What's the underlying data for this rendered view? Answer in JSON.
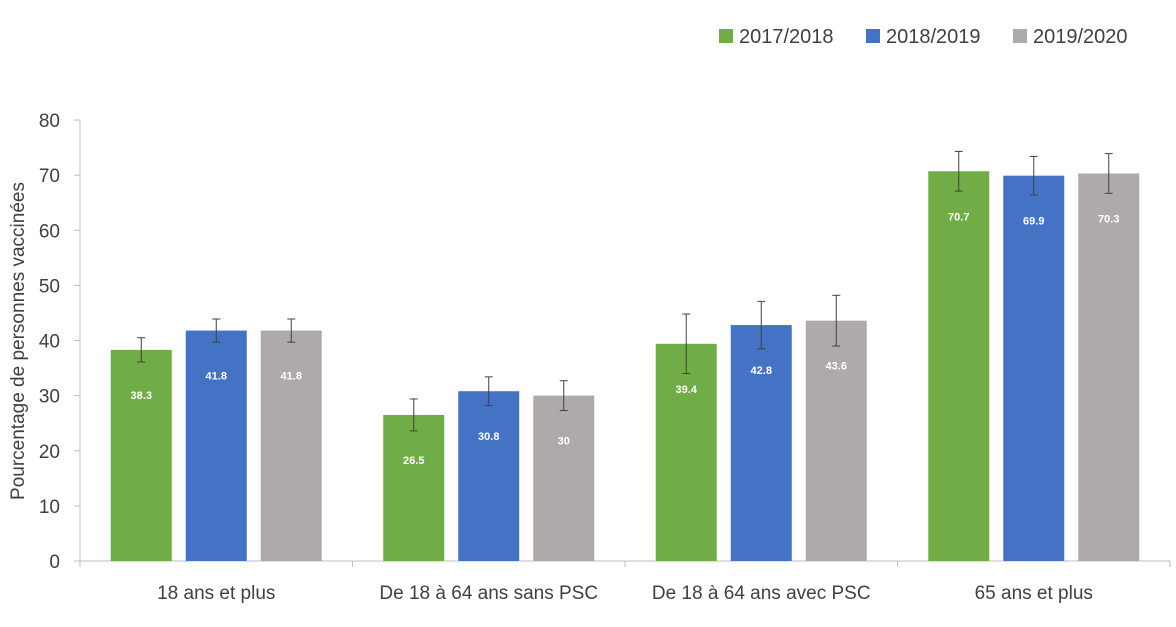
{
  "chart_data": {
    "type": "bar",
    "title": "",
    "xlabel": "",
    "ylabel": "Pourcentage de personnes vaccinées",
    "ylim": [
      0,
      80
    ],
    "yticks": [
      0,
      10,
      20,
      30,
      40,
      50,
      60,
      70,
      80
    ],
    "grid": false,
    "legend_position": "top-right",
    "categories": [
      "18 ans et plus",
      "De 18 à 64 ans sans PSC",
      "De 18 à 64 ans avec PSC",
      "65 ans et plus"
    ],
    "series": [
      {
        "name": "2017/2018",
        "color": "#70AD47",
        "values": [
          38.3,
          26.5,
          39.4,
          70.7
        ],
        "value_labels": [
          "38.3",
          "26.5",
          "39.4",
          "70.7"
        ],
        "ci_low": [
          36.1,
          23.6,
          34.0,
          67.1
        ],
        "ci_high": [
          40.5,
          29.4,
          44.8,
          74.3
        ]
      },
      {
        "name": "2018/2019",
        "color": "#4472C4",
        "values": [
          41.8,
          30.8,
          42.8,
          69.9
        ],
        "value_labels": [
          "41.8",
          "30.8",
          "42.8",
          "69.9"
        ],
        "ci_low": [
          39.7,
          28.2,
          38.5,
          66.4
        ],
        "ci_high": [
          43.9,
          33.4,
          47.1,
          73.4
        ]
      },
      {
        "name": "2019/2020",
        "color": "#AEAAAA",
        "values": [
          41.8,
          30.0,
          43.6,
          70.3
        ],
        "value_labels": [
          "41.8",
          "30",
          "43.6",
          "70.3"
        ],
        "ci_low": [
          39.7,
          27.3,
          39.0,
          66.7
        ],
        "ci_high": [
          43.9,
          32.7,
          48.2,
          73.9
        ]
      }
    ]
  }
}
